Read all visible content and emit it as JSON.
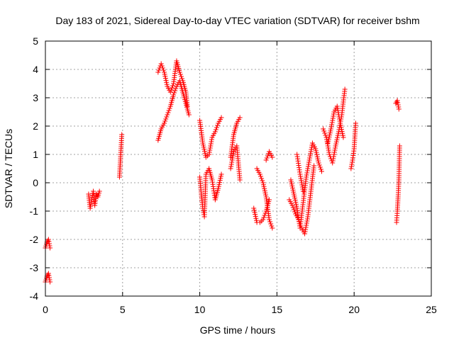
{
  "chart_data": {
    "type": "scatter",
    "title": "Day 183 of 2021, Sidereal Day-to-day VTEC variation (SDTVAR) for receiver bshm",
    "xlabel": "GPS time / hours",
    "ylabel": "SDTVAR / TECUs",
    "xlim": [
      0,
      25
    ],
    "ylim": [
      -4,
      5
    ],
    "xticks": [
      "0",
      "5",
      "10",
      "15",
      "20",
      "25"
    ],
    "yticks": [
      "-4",
      "-3",
      "-2",
      "-1",
      "0",
      "1",
      "2",
      "3",
      "4",
      "5"
    ],
    "grid": true,
    "marker": "+",
    "color": "#ff0000",
    "segments": [
      {
        "x": [
          0.0,
          0.1,
          0.2,
          0.3
        ],
        "y": [
          -2.3,
          -2.1,
          -2.0,
          -2.3
        ]
      },
      {
        "x": [
          0.0,
          0.1,
          0.2,
          0.3
        ],
        "y": [
          -3.5,
          -3.3,
          -3.2,
          -3.5
        ]
      },
      {
        "x": [
          2.8,
          2.9,
          3.0,
          3.1,
          3.2,
          3.3,
          3.4,
          3.5
        ],
        "y": [
          -0.4,
          -0.9,
          -0.6,
          -0.3,
          -0.8,
          -0.4,
          -0.5,
          -0.3
        ]
      },
      {
        "x": [
          4.8,
          4.85,
          4.9,
          4.95
        ],
        "y": [
          0.2,
          0.7,
          1.2,
          1.7
        ]
      },
      {
        "x": [
          7.3,
          7.5,
          7.7,
          7.9,
          8.1,
          8.3,
          8.5,
          8.7,
          8.9,
          9.1,
          9.3
        ],
        "y": [
          1.5,
          1.9,
          2.1,
          2.4,
          2.7,
          3.1,
          3.4,
          3.6,
          3.2,
          2.8,
          2.4
        ]
      },
      {
        "x": [
          7.3,
          7.5,
          7.7,
          7.9,
          8.1,
          8.3,
          8.5,
          8.7,
          8.9,
          9.1,
          9.2
        ],
        "y": [
          3.9,
          4.2,
          3.9,
          3.4,
          3.2,
          3.5,
          4.3,
          3.9,
          3.6,
          3.2,
          2.7
        ]
      },
      {
        "x": [
          10.0,
          10.2,
          10.4,
          10.6,
          10.8,
          11.0,
          11.2,
          11.4
        ],
        "y": [
          2.2,
          1.4,
          0.9,
          1.0,
          1.6,
          1.8,
          2.1,
          2.3
        ]
      },
      {
        "x": [
          10.0,
          10.1,
          10.2,
          10.3,
          10.4,
          10.6,
          10.8,
          11.0,
          11.2,
          11.4
        ],
        "y": [
          0.2,
          -0.4,
          -0.9,
          -1.2,
          0.3,
          0.5,
          0.1,
          -0.6,
          -0.2,
          0.3
        ]
      },
      {
        "x": [
          12.0,
          12.2,
          12.4,
          12.6
        ],
        "y": [
          0.9,
          1.7,
          2.1,
          2.3
        ]
      },
      {
        "x": [
          12.0,
          12.2,
          12.4,
          12.6
        ],
        "y": [
          0.5,
          1.1,
          1.3,
          0.1
        ]
      },
      {
        "x": [
          13.5,
          13.7,
          13.9,
          14.1,
          14.3,
          14.5
        ],
        "y": [
          -0.9,
          -1.4,
          -1.4,
          -1.3,
          -1.0,
          -0.6
        ]
      },
      {
        "x": [
          13.7,
          13.9,
          14.1,
          14.3,
          14.5,
          14.7
        ],
        "y": [
          0.5,
          0.3,
          0.0,
          -0.5,
          -1.3,
          -1.6
        ]
      },
      {
        "x": [
          14.3,
          14.5,
          14.7
        ],
        "y": [
          0.8,
          1.1,
          0.9
        ]
      },
      {
        "x": [
          15.8,
          16.0,
          16.2,
          16.4,
          16.6,
          16.8,
          17.0,
          17.2,
          17.4
        ],
        "y": [
          -0.6,
          -0.8,
          -1.1,
          -1.3,
          -1.6,
          -1.8,
          -1.2,
          -0.3,
          0.6
        ]
      },
      {
        "x": [
          15.9,
          16.1,
          16.3,
          16.5,
          16.7,
          16.9,
          17.1,
          17.3,
          17.5,
          17.7,
          17.9
        ],
        "y": [
          0.1,
          -0.4,
          -0.9,
          -1.6,
          -0.7,
          0.2,
          0.8,
          1.4,
          1.2,
          0.7,
          0.4
        ]
      },
      {
        "x": [
          16.3,
          16.5,
          16.7
        ],
        "y": [
          1.0,
          0.3,
          -0.3
        ]
      },
      {
        "x": [
          18.0,
          18.2,
          18.4,
          18.6,
          18.8,
          19.0,
          19.2,
          19.4
        ],
        "y": [
          1.9,
          1.6,
          1.0,
          0.7,
          1.3,
          1.8,
          2.4,
          3.3
        ]
      },
      {
        "x": [
          18.3,
          18.5,
          18.7,
          18.9,
          19.1,
          19.3
        ],
        "y": [
          1.4,
          1.9,
          2.5,
          2.7,
          2.1,
          1.6
        ]
      },
      {
        "x": [
          19.8,
          19.9,
          20.0,
          20.1
        ],
        "y": [
          0.5,
          0.8,
          1.2,
          2.1
        ]
      },
      {
        "x": [
          22.7,
          22.8,
          22.9
        ],
        "y": [
          2.8,
          2.9,
          2.6
        ]
      },
      {
        "x": [
          22.75,
          22.8,
          22.85,
          22.9,
          22.95
        ],
        "y": [
          -1.4,
          -1.0,
          -0.5,
          0.1,
          1.3
        ]
      }
    ]
  }
}
